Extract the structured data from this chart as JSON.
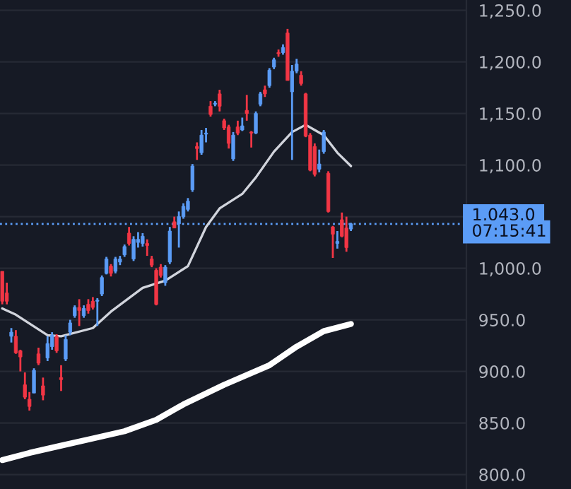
{
  "chart_data": {
    "type": "candlestick",
    "categories": [
      null,
      null,
      null,
      null,
      null,
      null,
      null,
      null,
      null,
      null,
      null,
      null,
      null,
      null,
      null,
      null,
      null,
      null,
      null,
      null,
      null,
      null,
      null,
      null,
      null,
      null,
      null,
      null,
      null,
      null,
      null,
      null,
      null,
      null,
      null,
      null,
      null,
      null,
      null,
      null,
      null,
      null,
      null,
      null,
      null,
      null,
      null,
      null,
      null,
      null,
      null,
      null,
      null,
      null,
      null,
      null,
      null,
      null,
      null,
      null,
      null,
      null,
      null,
      null,
      null,
      null,
      null,
      null,
      null,
      null,
      null,
      null,
      null,
      null,
      null,
      null,
      null,
      null,
      null,
      null,
      null,
      null,
      null,
      null,
      null,
      null,
      null,
      null,
      null,
      null,
      null,
      null,
      null,
      null,
      null,
      null,
      null,
      null,
      null,
      null,
      null,
      null,
      null
    ],
    "ohlc": [
      [
        997,
        997,
        965,
        968
      ],
      [
        976,
        986,
        965,
        968
      ],
      [
        934,
        942,
        928,
        938
      ],
      [
        934,
        940,
        917,
        918
      ],
      [
        920,
        921,
        900,
        914
      ],
      [
        887,
        899,
        873,
        875
      ],
      [
        873,
        880,
        862,
        866
      ],
      [
        879,
        903,
        879,
        901
      ],
      [
        917,
        923,
        906,
        908
      ],
      [
        886,
        894,
        872,
        877
      ],
      [
        913,
        934,
        910,
        927
      ],
      [
        924,
        938,
        921,
        935
      ],
      [
        934,
        936,
        918,
        920
      ],
      [
        894,
        906,
        881,
        892
      ],
      [
        912,
        935,
        910,
        931
      ],
      [
        938,
        950,
        935,
        947
      ],
      [
        954,
        964,
        952,
        962
      ],
      [
        962,
        970,
        944,
        959
      ],
      [
        954,
        964,
        952,
        961
      ],
      [
        965,
        970,
        956,
        959
      ],
      [
        968,
        972,
        960,
        962
      ],
      [
        968,
        971,
        944,
        969
      ],
      [
        975,
        993,
        973,
        991
      ],
      [
        995,
        1011,
        994,
        1009
      ],
      [
        1002,
        1004,
        992,
        995
      ],
      [
        997,
        1011,
        995,
        1009
      ],
      [
        1006,
        1012,
        1003,
        1009
      ],
      [
        1013,
        1023,
        1011,
        1021
      ],
      [
        1034,
        1040,
        1022,
        1024
      ],
      [
        1009,
        1031,
        1007,
        1028
      ],
      [
        1025,
        1035,
        1020,
        1028
      ],
      [
        1024,
        1034,
        1021,
        1031
      ],
      [
        1024,
        1028,
        1012,
        1022
      ],
      [
        1009,
        1012,
        1001,
        1003
      ],
      [
        998,
        1000,
        964,
        965
      ],
      [
        1001,
        1004,
        991,
        993
      ],
      [
        986,
        1003,
        983,
        1001
      ],
      [
        1006,
        1040,
        1004,
        1036
      ],
      [
        1045,
        1050,
        1039,
        1039
      ],
      [
        1043,
        1055,
        1020,
        1050
      ],
      [
        1050,
        1063,
        1048,
        1060
      ],
      [
        1057,
        1068,
        1055,
        1065
      ],
      [
        1076,
        1101,
        1074,
        1099
      ],
      [
        1118,
        1122,
        1105,
        1116
      ],
      [
        1112,
        1134,
        1110,
        1129
      ],
      [
        1130,
        1136,
        1122,
        1131
      ],
      [
        1157,
        1162,
        1147,
        1149
      ],
      [
        1159,
        1162,
        1157,
        1160
      ],
      [
        1169,
        1173,
        1152,
        1157
      ],
      [
        1143,
        1145,
        1134,
        1136
      ],
      [
        1137,
        1139,
        1116,
        1121
      ],
      [
        1106,
        1132,
        1104,
        1129
      ],
      [
        1137,
        1143,
        1129,
        1131
      ],
      [
        1134,
        1146,
        1133,
        1138
      ],
      [
        1153,
        1168,
        1143,
        1150
      ],
      [
        1132,
        1133,
        1117,
        1131
      ],
      [
        1131,
        1152,
        1130,
        1150
      ],
      [
        1159,
        1171,
        1157,
        1169
      ],
      [
        1173,
        1177,
        1166,
        1169
      ],
      [
        1177,
        1194,
        1175,
        1192
      ],
      [
        1195,
        1204,
        1193,
        1202
      ],
      [
        1209,
        1212,
        1205,
        1208
      ],
      [
        1209,
        1217,
        1207,
        1214
      ],
      [
        1228,
        1232,
        1182,
        1182
      ],
      [
        1171,
        1197,
        1105,
        1191
      ],
      [
        1191,
        1203,
        1189,
        1198
      ],
      [
        1187,
        1191,
        1177,
        1179
      ],
      [
        1169,
        1170,
        1127,
        1128
      ],
      [
        1129,
        1131,
        1094,
        1095
      ],
      [
        1118,
        1121,
        1089,
        1091
      ],
      [
        1096,
        1115,
        1093,
        1101
      ],
      [
        1113,
        1134,
        1111,
        1132
      ],
      [
        1092,
        1094,
        1054,
        1055
      ],
      [
        1040,
        1041,
        1010,
        1033
      ],
      [
        1024,
        1036,
        1019,
        1026
      ],
      [
        1047,
        1054,
        1030,
        1031
      ],
      [
        1039,
        1050,
        1016,
        1020
      ],
      [
        1038,
        1044,
        1036,
        1043
      ],
      null,
      null,
      null,
      null,
      null,
      null,
      null,
      null,
      null,
      null,
      null,
      null,
      null,
      null,
      null,
      null,
      null,
      null,
      null,
      null,
      null,
      null,
      null,
      null,
      null
    ],
    "colors": [
      "#f23645",
      "#f23645",
      "#5b9cf6",
      "#f23645",
      "#f23645",
      "#f23645",
      "#f23645",
      "#5b9cf6",
      "#f23645",
      "#f23645",
      "#5b9cf6",
      "#5b9cf6",
      "#f23645",
      "#f23645",
      "#5b9cf6",
      "#5b9cf6",
      "#5b9cf6",
      "#f23645",
      "#5b9cf6",
      "#f23645",
      "#f23645",
      "#5b9cf6",
      "#5b9cf6",
      "#5b9cf6",
      "#f23645",
      "#5b9cf6",
      "#5b9cf6",
      "#5b9cf6",
      "#f23645",
      "#5b9cf6",
      "#5b9cf6",
      "#5b9cf6",
      "#f23645",
      "#f23645",
      "#f23645",
      "#f23645",
      "#5b9cf6",
      "#5b9cf6",
      "#f23645",
      "#5b9cf6",
      "#5b9cf6",
      "#5b9cf6",
      "#5b9cf6",
      "#f23645",
      "#5b9cf6",
      "#5b9cf6",
      "#f23645",
      "#5b9cf6",
      "#f23645",
      "#f23645",
      "#f23645",
      "#5b9cf6",
      "#f23645",
      "#5b9cf6",
      "#f23645",
      "#f23645",
      "#5b9cf6",
      "#5b9cf6",
      "#f23645",
      "#5b9cf6",
      "#5b9cf6",
      "#f23645",
      "#5b9cf6",
      "#f23645",
      "#5b9cf6",
      "#5b9cf6",
      "#f23645",
      "#f23645",
      "#f23645",
      "#f23645",
      "#5b9cf6",
      "#5b9cf6",
      "#f23645",
      "#f23645",
      "#5b9cf6",
      "#f23645",
      "#f23645",
      "#5b9cf6",
      null,
      null,
      null,
      null,
      null,
      null,
      null,
      null,
      null,
      null,
      null,
      null,
      null,
      null,
      null,
      null,
      null,
      null,
      null,
      null,
      null,
      null,
      null,
      null,
      null
    ],
    "series": [
      {
        "type": "line",
        "color": "#d1d4dc",
        "values": [
          961,
          null,
          null,
          955,
          null,
          null,
          null,
          null,
          null,
          null,
          935,
          null,
          null,
          934,
          null,
          null,
          null,
          null,
          null,
          null,
          942,
          null,
          null,
          null,
          958,
          null,
          null,
          null,
          null,
          null,
          null,
          981,
          null,
          null,
          null,
          null,
          988,
          null,
          null,
          null,
          null,
          1002,
          null,
          null,
          null,
          1040,
          null,
          null,
          1058,
          null,
          null,
          null,
          null,
          1072,
          null,
          null,
          1088,
          null,
          null,
          null,
          1113,
          null,
          null,
          null,
          1132,
          null,
          null,
          1139,
          null,
          1134,
          null,
          1129,
          null,
          null,
          1112,
          null,
          null,
          1099,
          null,
          null,
          null,
          null,
          null,
          null,
          null,
          null,
          null,
          null,
          null,
          null,
          null,
          null,
          null,
          null,
          null,
          null,
          null,
          null,
          null,
          null,
          null,
          null,
          null
        ]
      },
      {
        "type": "line",
        "color": "#ffffff",
        "values": [
          814,
          null,
          null,
          null,
          null,
          null,
          821,
          null,
          null,
          null,
          null,
          null,
          null,
          828,
          null,
          null,
          null,
          null,
          null,
          null,
          835,
          null,
          null,
          null,
          null,
          null,
          null,
          842,
          null,
          null,
          null,
          null,
          null,
          null,
          853,
          null,
          null,
          null,
          null,
          null,
          868,
          null,
          null,
          null,
          null,
          null,
          null,
          null,
          null,
          887,
          null,
          null,
          null,
          null,
          null,
          null,
          null,
          null,
          null,
          906,
          null,
          null,
          null,
          null,
          null,
          924,
          null,
          null,
          null,
          null,
          null,
          939,
          null,
          null,
          null,
          null,
          null,
          946,
          null,
          null,
          null,
          null,
          null,
          null,
          null,
          null,
          null,
          null,
          null,
          null,
          null,
          null,
          null,
          null,
          null,
          null,
          null,
          null,
          null,
          null,
          null,
          null,
          null
        ]
      }
    ],
    "ylim": [
      786,
      1260
    ],
    "yticks": [
      {
        "value": 800,
        "label": "800.0"
      },
      {
        "value": 850,
        "label": "850.0"
      },
      {
        "value": 900,
        "label": "900.0"
      },
      {
        "value": 950,
        "label": "950.0"
      },
      {
        "value": 1000,
        "label": "1,000.0"
      },
      {
        "value": 1050,
        "label": null
      },
      {
        "value": 1100,
        "label": "1,100.0"
      },
      {
        "value": 1150,
        "label": "1,150.0"
      },
      {
        "value": 1200,
        "label": "1,200.0"
      },
      {
        "value": 1250,
        "label": "1,250.0"
      }
    ],
    "grid": "y",
    "ref_lines": [
      {
        "axis": "y",
        "value": 1043,
        "label": "1,043.0",
        "color": "#5b9cf6",
        "line_style": "dotted"
      }
    ],
    "annotations": [
      "07:15:41"
    ]
  }
}
